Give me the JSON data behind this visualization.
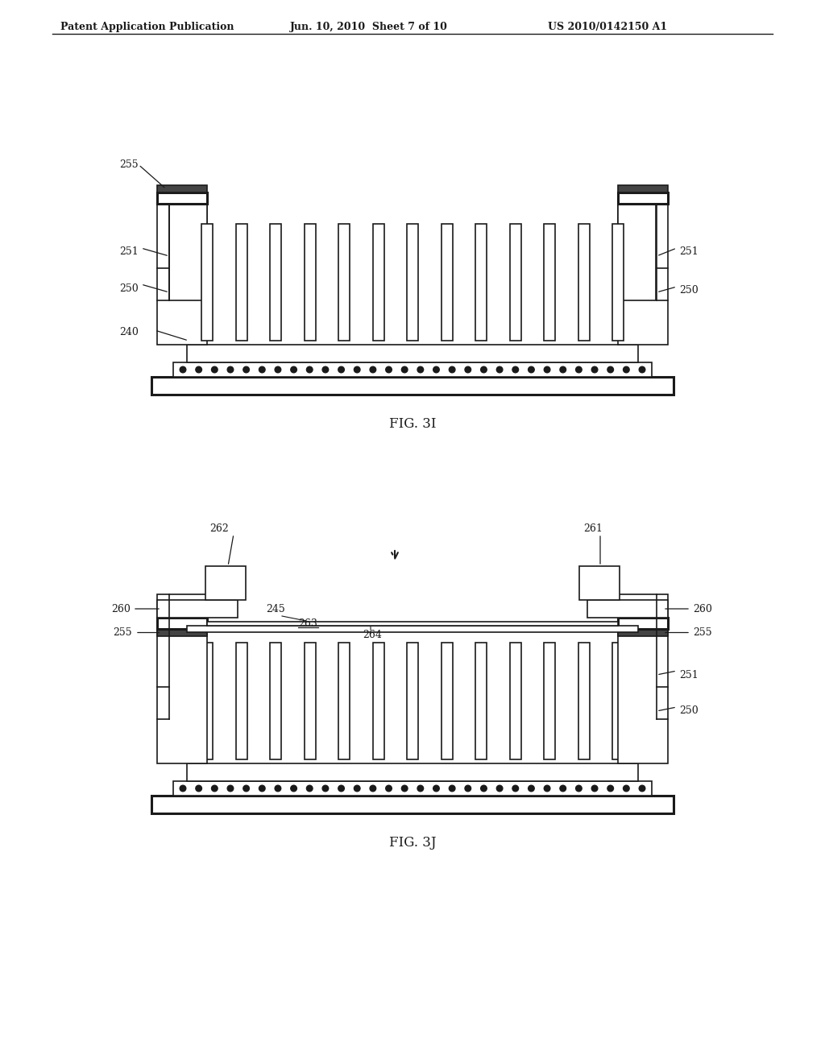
{
  "header_left": "Patent Application Publication",
  "header_mid": "Jun. 10, 2010  Sheet 7 of 10",
  "header_right": "US 2010/0142150 A1",
  "fig_label_3i": "FIG. 3I",
  "fig_label_3j": "FIG. 3J",
  "bg_color": "#ffffff",
  "line_color": "#1a1a1a",
  "line_width": 1.2,
  "thick_line": 2.2
}
